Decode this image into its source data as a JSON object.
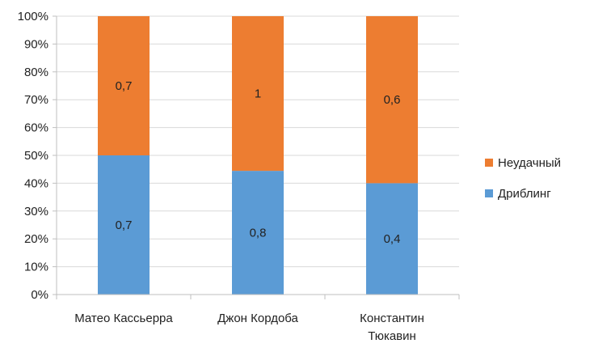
{
  "chart_data": {
    "type": "bar",
    "stacked": "percent",
    "categories": [
      [
        "Матео Кассьерра"
      ],
      [
        "Джон Кордоба"
      ],
      [
        "Константин",
        "Тюкавин"
      ]
    ],
    "series": [
      {
        "name": "Дриблинг",
        "color": "#5B9BD5",
        "values": [
          0.7,
          0.8,
          0.4
        ],
        "data_labels": [
          "0,7",
          "0,8",
          "0,4"
        ]
      },
      {
        "name": "Неудачный",
        "color": "#ED7D31",
        "values": [
          0.7,
          1,
          0.6
        ],
        "data_labels": [
          "0,7",
          "1",
          "0,6"
        ]
      }
    ],
    "ylim": [
      0,
      100
    ],
    "y_ticks": [
      "0%",
      "10%",
      "20%",
      "30%",
      "40%",
      "50%",
      "60%",
      "70%",
      "80%",
      "90%",
      "100%"
    ],
    "grid": true,
    "legend_position": "right"
  }
}
